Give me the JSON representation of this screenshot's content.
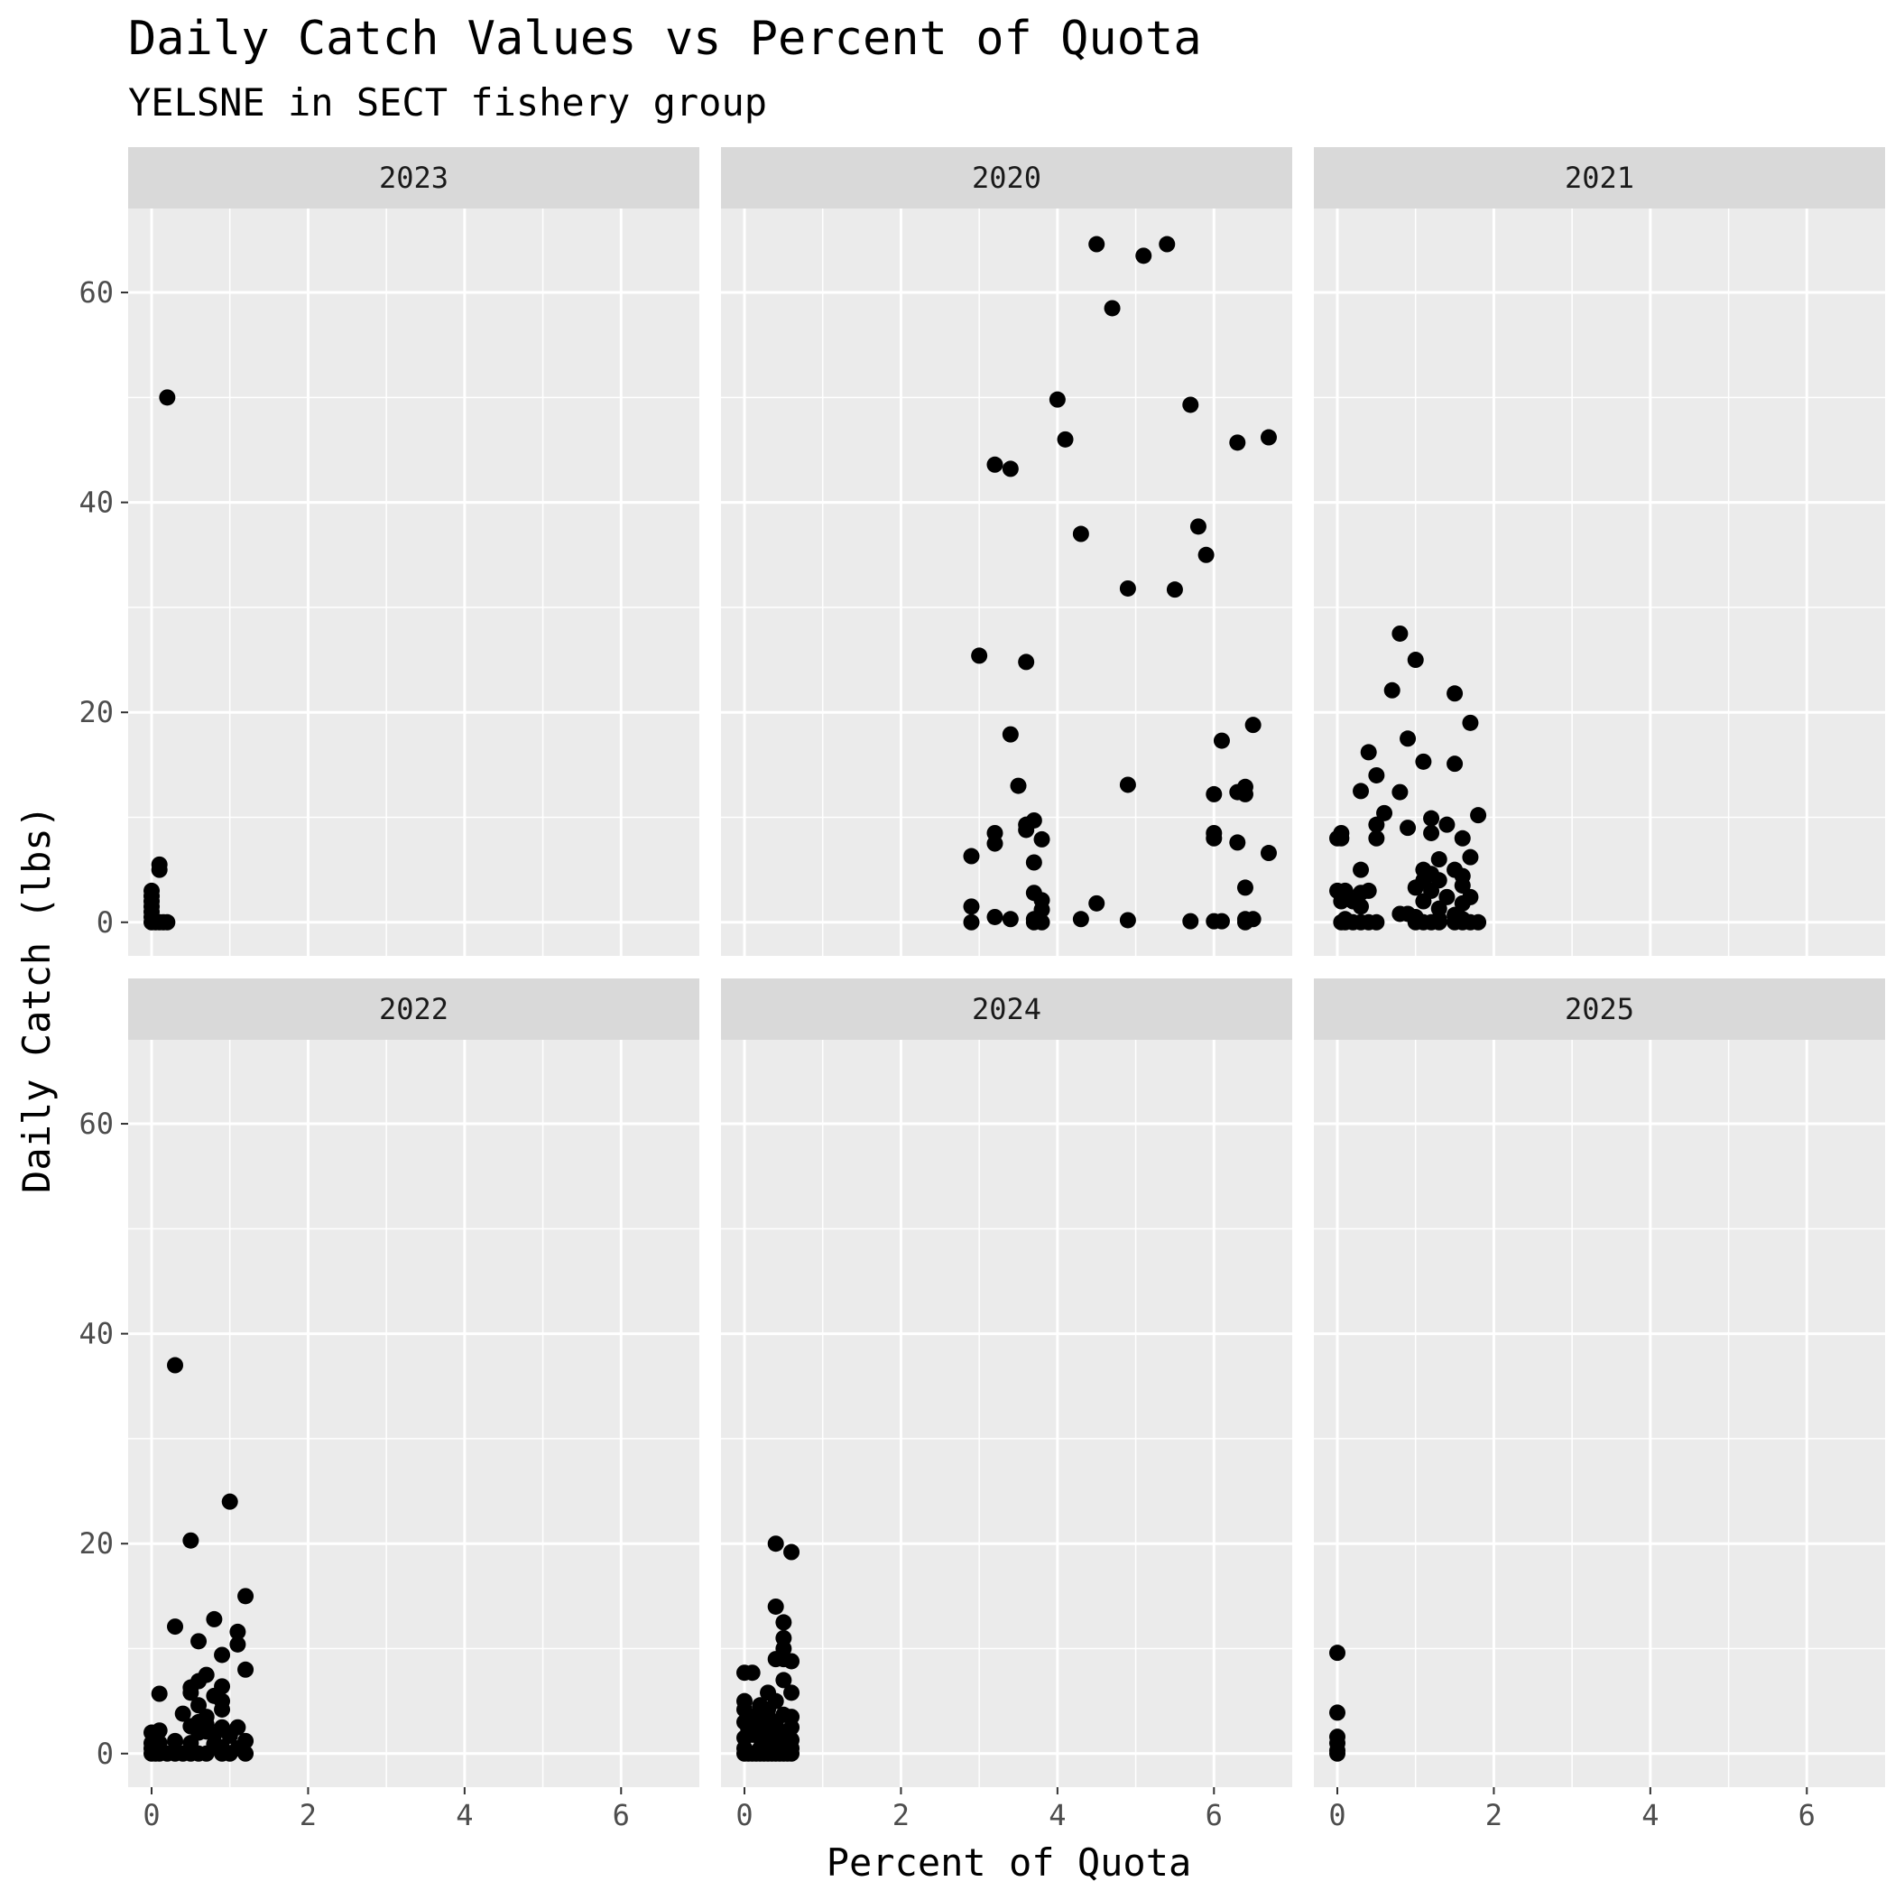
{
  "chart_data": {
    "type": "scatter",
    "title": "Daily Catch Values vs Percent of Quota",
    "subtitle": "YELSNE in SECT fishery group",
    "xlabel": "Percent of Quota",
    "ylabel": "Daily Catch (lbs)",
    "xlim": [
      -0.3,
      7.0
    ],
    "ylim": [
      -3.2,
      68.0
    ],
    "x_ticks": [
      0,
      2,
      4,
      6
    ],
    "y_ticks": [
      0,
      20,
      40,
      60
    ],
    "grid": true,
    "facet_layout": "3 columns x 2 rows",
    "panels": [
      {
        "facet": "2023",
        "points": [
          [
            0.2,
            50
          ],
          [
            0.1,
            5.5
          ],
          [
            0.1,
            5
          ],
          [
            0,
            3
          ],
          [
            0,
            2.5
          ],
          [
            0,
            2
          ],
          [
            0,
            1.5
          ],
          [
            0,
            1
          ],
          [
            0,
            0.5
          ],
          [
            0,
            0
          ],
          [
            0.05,
            0
          ],
          [
            0.1,
            0
          ],
          [
            0.15,
            0
          ],
          [
            0.2,
            0
          ]
        ]
      },
      {
        "facet": "2020",
        "points": [
          [
            4.5,
            64.6
          ],
          [
            5.4,
            64.6
          ],
          [
            5.1,
            63.5
          ],
          [
            4.7,
            58.5
          ],
          [
            4.0,
            49.8
          ],
          [
            5.7,
            49.3
          ],
          [
            4.1,
            46
          ],
          [
            6.7,
            46.2
          ],
          [
            6.3,
            45.7
          ],
          [
            3.2,
            43.6
          ],
          [
            3.4,
            43.2
          ],
          [
            5.8,
            37.7
          ],
          [
            4.3,
            37
          ],
          [
            5.9,
            35
          ],
          [
            4.9,
            31.8
          ],
          [
            5.5,
            31.7
          ],
          [
            3.0,
            25.4
          ],
          [
            3.6,
            24.8
          ],
          [
            6.5,
            18.8
          ],
          [
            6.1,
            17.3
          ],
          [
            3.4,
            17.9
          ],
          [
            3.5,
            13
          ],
          [
            4.9,
            13.1
          ],
          [
            6.4,
            12.9
          ],
          [
            6.3,
            12.4
          ],
          [
            6.4,
            12.2
          ],
          [
            6.0,
            12.2
          ],
          [
            3.7,
            9.7
          ],
          [
            3.6,
            9.3
          ],
          [
            3.6,
            8.8
          ],
          [
            3.2,
            8.5
          ],
          [
            6.0,
            8.5
          ],
          [
            6.0,
            8
          ],
          [
            3.8,
            7.9
          ],
          [
            6.3,
            7.6
          ],
          [
            3.2,
            7.5
          ],
          [
            6.7,
            6.6
          ],
          [
            2.9,
            6.3
          ],
          [
            3.7,
            5.7
          ],
          [
            6.4,
            3.3
          ],
          [
            3.7,
            2.8
          ],
          [
            3.8,
            2.1
          ],
          [
            4.5,
            1.8
          ],
          [
            2.9,
            1.5
          ],
          [
            3.8,
            1.2
          ],
          [
            3.2,
            0.5
          ],
          [
            3.4,
            0.3
          ],
          [
            4.3,
            0.3
          ],
          [
            3.7,
            0.3
          ],
          [
            4.9,
            0.2
          ],
          [
            5.7,
            0.1
          ],
          [
            6.0,
            0.1
          ],
          [
            6.1,
            0.1
          ],
          [
            6.4,
            0.3
          ],
          [
            6.5,
            0.3
          ],
          [
            2.9,
            0
          ],
          [
            3.7,
            0
          ],
          [
            3.8,
            0
          ],
          [
            6.4,
            0
          ]
        ]
      },
      {
        "facet": "2021",
        "points": [
          [
            0.8,
            27.5
          ],
          [
            1.0,
            25
          ],
          [
            0.7,
            22.1
          ],
          [
            1.5,
            21.8
          ],
          [
            1.7,
            19
          ],
          [
            0.9,
            17.5
          ],
          [
            0.4,
            16.2
          ],
          [
            1.1,
            15.3
          ],
          [
            1.5,
            15.1
          ],
          [
            0.5,
            14
          ],
          [
            0.3,
            12.5
          ],
          [
            0.8,
            12.4
          ],
          [
            0.6,
            10.4
          ],
          [
            1.8,
            10.2
          ],
          [
            1.2,
            9.9
          ],
          [
            0.5,
            9.3
          ],
          [
            1.4,
            9.3
          ],
          [
            0.9,
            9
          ],
          [
            0.05,
            8.5
          ],
          [
            1.2,
            8.5
          ],
          [
            0,
            8
          ],
          [
            0.05,
            8
          ],
          [
            0.5,
            8
          ],
          [
            1.6,
            8
          ],
          [
            1.3,
            6
          ],
          [
            1.7,
            6.2
          ],
          [
            0.3,
            5
          ],
          [
            1.1,
            5
          ],
          [
            1.5,
            5
          ],
          [
            1.2,
            4.6
          ],
          [
            1.6,
            4.4
          ],
          [
            1.1,
            4
          ],
          [
            1.3,
            4
          ],
          [
            1.6,
            3.5
          ],
          [
            1.0,
            3.3
          ],
          [
            0,
            3
          ],
          [
            0.1,
            3
          ],
          [
            0.3,
            2.8
          ],
          [
            0.4,
            3
          ],
          [
            1.2,
            3
          ],
          [
            1.4,
            2.4
          ],
          [
            1.7,
            2.4
          ],
          [
            0.05,
            2
          ],
          [
            0.2,
            2
          ],
          [
            1.1,
            2
          ],
          [
            1.6,
            1.8
          ],
          [
            0.3,
            1.5
          ],
          [
            1.3,
            1.3
          ],
          [
            0.8,
            0.8
          ],
          [
            0.9,
            0.8
          ],
          [
            1.0,
            0.5
          ],
          [
            1.5,
            0.7
          ],
          [
            0.1,
            0.3
          ],
          [
            1.3,
            0.3
          ],
          [
            1.6,
            0.3
          ],
          [
            0.05,
            0
          ],
          [
            0.1,
            0
          ],
          [
            0.2,
            0
          ],
          [
            0.3,
            0
          ],
          [
            0.4,
            0
          ],
          [
            0.5,
            0
          ],
          [
            1.0,
            0
          ],
          [
            1.1,
            0
          ],
          [
            1.2,
            0
          ],
          [
            1.3,
            0
          ],
          [
            1.5,
            0
          ],
          [
            1.6,
            0
          ],
          [
            1.7,
            0
          ],
          [
            1.8,
            0
          ]
        ]
      },
      {
        "facet": "2022",
        "points": [
          [
            0.3,
            37
          ],
          [
            1.0,
            24
          ],
          [
            0.5,
            20.3
          ],
          [
            1.2,
            15
          ],
          [
            0.8,
            12.8
          ],
          [
            0.3,
            12.1
          ],
          [
            1.1,
            11.6
          ],
          [
            1.1,
            10.4
          ],
          [
            0.6,
            10.7
          ],
          [
            0.9,
            9.4
          ],
          [
            1.2,
            8
          ],
          [
            0.7,
            7.5
          ],
          [
            0.6,
            6.9
          ],
          [
            0.5,
            6.3
          ],
          [
            0.9,
            6.4
          ],
          [
            0.5,
            5.8
          ],
          [
            0.1,
            5.7
          ],
          [
            0.8,
            5.5
          ],
          [
            0.9,
            5
          ],
          [
            0.6,
            4.6
          ],
          [
            0.9,
            4.2
          ],
          [
            0.4,
            3.8
          ],
          [
            0.7,
            3.5
          ],
          [
            0.6,
            3
          ],
          [
            0.7,
            2.8
          ],
          [
            0.5,
            2.6
          ],
          [
            0.9,
            2.5
          ],
          [
            1.1,
            2.5
          ],
          [
            0,
            2
          ],
          [
            0.1,
            2.2
          ],
          [
            0.6,
            2
          ],
          [
            0.7,
            2.1
          ],
          [
            0.8,
            1.8
          ],
          [
            1.0,
            1.7
          ],
          [
            0.3,
            1.2
          ],
          [
            1.2,
            1.2
          ],
          [
            0,
            1
          ],
          [
            0.1,
            1
          ],
          [
            0.5,
            1
          ],
          [
            0.8,
            0.9
          ],
          [
            0.9,
            0.6
          ],
          [
            1.1,
            0.5
          ],
          [
            0,
            0.5
          ],
          [
            0,
            0
          ],
          [
            0.05,
            0
          ],
          [
            0.1,
            0
          ],
          [
            0.2,
            0
          ],
          [
            0.3,
            0
          ],
          [
            0.4,
            0
          ],
          [
            0.5,
            0
          ],
          [
            0.6,
            0
          ],
          [
            0.7,
            0
          ],
          [
            0.9,
            0
          ],
          [
            1.0,
            0
          ],
          [
            1.2,
            0
          ]
        ]
      },
      {
        "facet": "2024",
        "points": [
          [
            0.4,
            20
          ],
          [
            0.6,
            19.2
          ],
          [
            0.4,
            14
          ],
          [
            0.5,
            12.5
          ],
          [
            0.5,
            11
          ],
          [
            0.5,
            10
          ],
          [
            0.4,
            9
          ],
          [
            0.5,
            9
          ],
          [
            0.6,
            8.8
          ],
          [
            0,
            7.7
          ],
          [
            0.1,
            7.7
          ],
          [
            0.5,
            7
          ],
          [
            0.3,
            5.8
          ],
          [
            0.6,
            5.8
          ],
          [
            0,
            5
          ],
          [
            0.4,
            5
          ],
          [
            0.2,
            4.6
          ],
          [
            0,
            4.2
          ],
          [
            0.2,
            4
          ],
          [
            0.3,
            4.2
          ],
          [
            0.1,
            3.5
          ],
          [
            0.3,
            3.5
          ],
          [
            0.5,
            3.7
          ],
          [
            0.6,
            3.5
          ],
          [
            0,
            3
          ],
          [
            0.2,
            2.8
          ],
          [
            0.4,
            2.8
          ],
          [
            0.6,
            2.5
          ],
          [
            0.05,
            2.3
          ],
          [
            0.3,
            2.2
          ],
          [
            0.5,
            2
          ],
          [
            0.1,
            1.8
          ],
          [
            0,
            1.5
          ],
          [
            0.2,
            1.5
          ],
          [
            0.4,
            1.5
          ],
          [
            0.6,
            1.3
          ],
          [
            0.3,
            1
          ],
          [
            0.5,
            1
          ],
          [
            0,
            0.5
          ],
          [
            0.2,
            0.5
          ],
          [
            0.4,
            0.5
          ],
          [
            0.6,
            0.5
          ],
          [
            0,
            0
          ],
          [
            0.05,
            0
          ],
          [
            0.1,
            0
          ],
          [
            0.15,
            0
          ],
          [
            0.2,
            0
          ],
          [
            0.25,
            0
          ],
          [
            0.3,
            0
          ],
          [
            0.35,
            0
          ],
          [
            0.4,
            0
          ],
          [
            0.45,
            0
          ],
          [
            0.5,
            0
          ],
          [
            0.55,
            0
          ],
          [
            0.6,
            0
          ]
        ]
      },
      {
        "facet": "2025",
        "points": [
          [
            0,
            9.6
          ],
          [
            0,
            3.9
          ],
          [
            0,
            1.6
          ],
          [
            0,
            1
          ],
          [
            0,
            0.3
          ],
          [
            0,
            0
          ]
        ]
      }
    ]
  }
}
